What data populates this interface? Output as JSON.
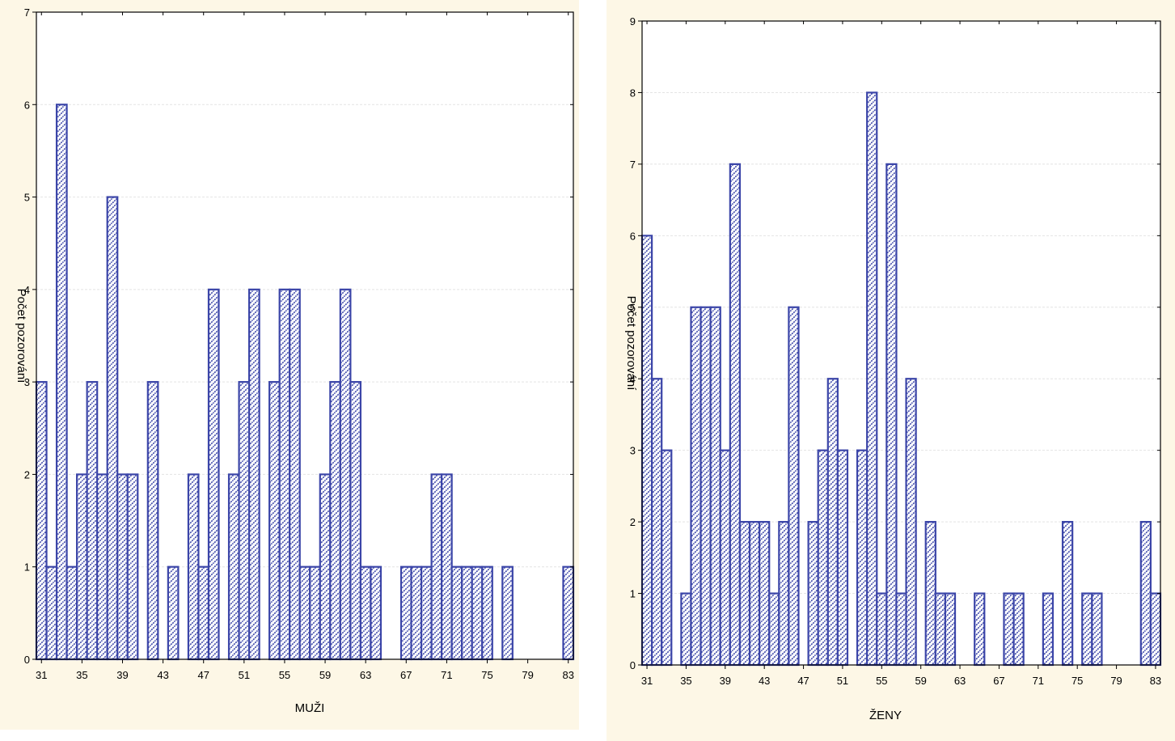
{
  "colors": {
    "bar_stroke": "#3b45a8",
    "hatch": "#3b45a8",
    "panel_bg": "#fdf7e6",
    "plot_bg": "#ffffff",
    "grid": "#e4e4e4"
  },
  "chart_data": [
    {
      "type": "bar",
      "title": "",
      "xlabel": "MUŽI",
      "ylabel": "Počet pozorování",
      "xlim": [
        31,
        84
      ],
      "ylim": [
        0,
        7
      ],
      "xticks": [
        31,
        35,
        39,
        43,
        47,
        51,
        55,
        59,
        63,
        67,
        71,
        75,
        79,
        83
      ],
      "yticks": [
        0,
        1,
        2,
        3,
        4,
        5,
        6,
        7
      ],
      "grid": true,
      "categories": [
        31,
        32,
        33,
        34,
        35,
        36,
        37,
        38,
        39,
        40,
        41,
        42,
        43,
        44,
        45,
        46,
        47,
        48,
        49,
        50,
        51,
        52,
        53,
        54,
        55,
        56,
        57,
        58,
        59,
        60,
        61,
        62,
        63,
        64,
        65,
        66,
        67,
        68,
        69,
        70,
        71,
        72,
        73,
        74,
        75,
        76,
        77,
        78,
        79,
        80,
        81,
        82,
        83
      ],
      "values": [
        3,
        1,
        6,
        1,
        2,
        3,
        2,
        5,
        2,
        2,
        0,
        3,
        0,
        1,
        0,
        2,
        1,
        4,
        0,
        2,
        3,
        4,
        0,
        3,
        4,
        4,
        1,
        1,
        2,
        3,
        4,
        3,
        1,
        1,
        0,
        0,
        1,
        1,
        1,
        2,
        2,
        1,
        1,
        1,
        1,
        0,
        1,
        0,
        0,
        0,
        0,
        0,
        1
      ]
    },
    {
      "type": "bar",
      "title": "",
      "xlabel": "ŽENY",
      "ylabel": "Počet pozorování",
      "xlim": [
        31,
        84
      ],
      "ylim": [
        0,
        9
      ],
      "xticks": [
        31,
        35,
        39,
        43,
        47,
        51,
        55,
        59,
        63,
        67,
        71,
        75,
        79,
        83
      ],
      "yticks": [
        0,
        1,
        2,
        3,
        4,
        5,
        6,
        7,
        8,
        9
      ],
      "grid": true,
      "categories": [
        31,
        32,
        33,
        34,
        35,
        36,
        37,
        38,
        39,
        40,
        41,
        42,
        43,
        44,
        45,
        46,
        47,
        48,
        49,
        50,
        51,
        52,
        53,
        54,
        55,
        56,
        57,
        58,
        59,
        60,
        61,
        62,
        63,
        64,
        65,
        66,
        67,
        68,
        69,
        70,
        71,
        72,
        73,
        74,
        75,
        76,
        77,
        78,
        79,
        80,
        81,
        82,
        83
      ],
      "values": [
        6,
        4,
        3,
        0,
        1,
        5,
        5,
        5,
        3,
        7,
        2,
        2,
        2,
        1,
        2,
        5,
        0,
        2,
        3,
        4,
        3,
        0,
        3,
        8,
        1,
        7,
        1,
        4,
        0,
        2,
        1,
        1,
        0,
        0,
        1,
        0,
        0,
        1,
        1,
        0,
        0,
        1,
        0,
        2,
        0,
        1,
        1,
        0,
        0,
        0,
        0,
        2,
        1
      ]
    }
  ]
}
